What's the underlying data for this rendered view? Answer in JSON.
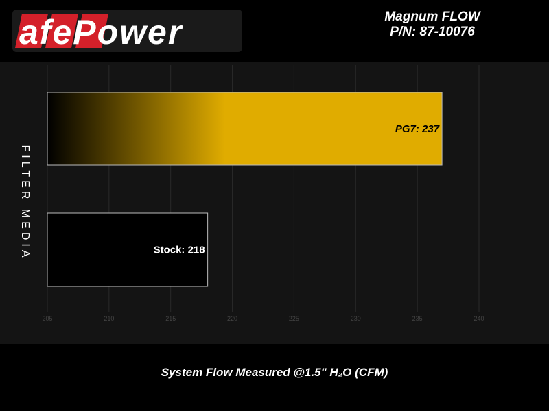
{
  "header": {
    "brand": "aFePower",
    "title_line1": "Magnum FLOW",
    "title_line2": "P/N: 87-10076"
  },
  "colors": {
    "pg7": "#e0ac00",
    "stock": "#000000",
    "brand_red": "#d4202a"
  },
  "chart_data": {
    "type": "bar",
    "orientation": "horizontal",
    "categories": [
      "PG7",
      "Stock"
    ],
    "values": [
      237,
      218
    ],
    "data_labels": [
      "PG7: 237",
      "Stock: 218"
    ],
    "xlabel": "System Flow Measured @1.5\" H₂O (CFM)",
    "ylabel": "FILTER MEDIA",
    "xlim": [
      205,
      240
    ],
    "xticks": [
      "205",
      "210",
      "215",
      "220",
      "225",
      "230",
      "235",
      "240"
    ],
    "grid": true
  }
}
